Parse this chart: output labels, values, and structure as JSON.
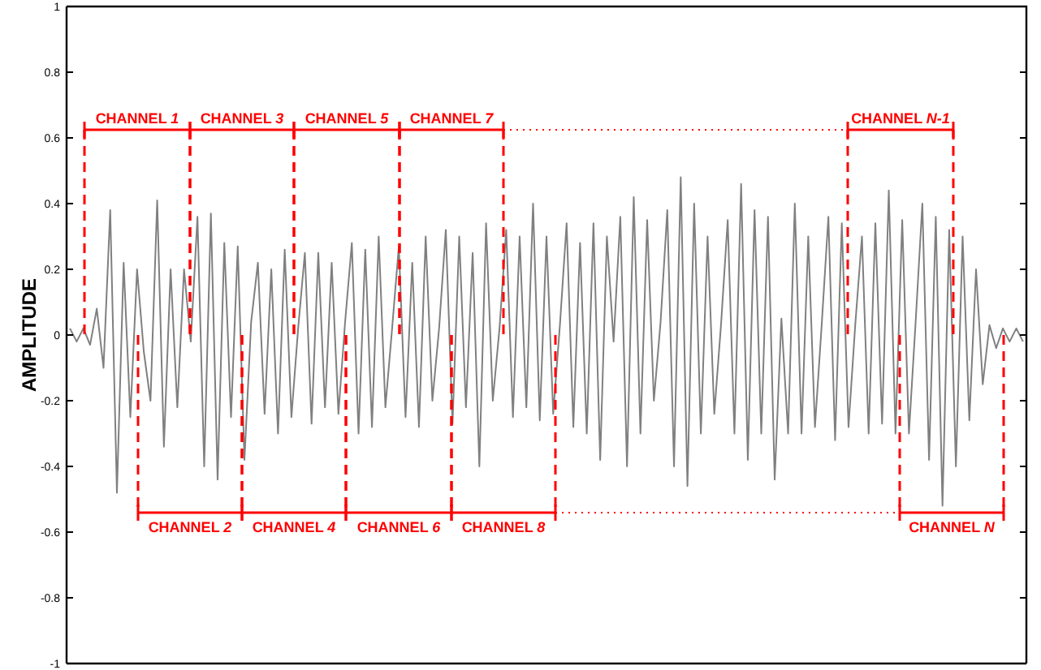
{
  "chart_data": {
    "type": "line",
    "ylabel": "AMPLITUDE",
    "ylim": [
      -1,
      1
    ],
    "tick_labels": "y",
    "categories": [
      null,
      null,
      null,
      null,
      null,
      null,
      null,
      null,
      null,
      null,
      null,
      null,
      null,
      null,
      null,
      null,
      null,
      null,
      null,
      null,
      null,
      null,
      null,
      null,
      null,
      null,
      null,
      null,
      null,
      null,
      null,
      null,
      null,
      null,
      null,
      null,
      null,
      null,
      null,
      null,
      null,
      null,
      null,
      null,
      null,
      null,
      null,
      null,
      null,
      null,
      null,
      null,
      null,
      null,
      null,
      null,
      null,
      null,
      null,
      null,
      null,
      null,
      null,
      null,
      null,
      null,
      null,
      null,
      null,
      null,
      null,
      null,
      null,
      null,
      null,
      null,
      null,
      null,
      null,
      null,
      null,
      null,
      null,
      null,
      null,
      null,
      null,
      null,
      null,
      null,
      null,
      null,
      null,
      null,
      null,
      null,
      null,
      null,
      null,
      null,
      null,
      null,
      null,
      null,
      null,
      null,
      null,
      null,
      null,
      null,
      null,
      null,
      null,
      null,
      null,
      null,
      null,
      null,
      null,
      null,
      null,
      null,
      null,
      null,
      null,
      null,
      null,
      null,
      null,
      null,
      null,
      null,
      null,
      null,
      null,
      null,
      null,
      null,
      null,
      null,
      null,
      null,
      null
    ],
    "annotations": [
      "CHANNEL 1",
      "CHANNEL 3",
      "CHANNEL 5",
      "CHANNEL 7",
      "CHANNEL N-1",
      "CHANNEL 2",
      "CHANNEL 4",
      "CHANNEL 6",
      "CHANNEL 8",
      "CHANNEL N"
    ],
    "yticks": [
      -1,
      -0.8,
      -0.6,
      -0.4,
      -0.2,
      0,
      0.2,
      0.4,
      0.6,
      0.8,
      1
    ],
    "grid": false,
    "marker": "none",
    "line_style": "solid",
    "series": [
      {
        "color": "#808080",
        "values": [
          0.02,
          -0.02,
          0.02,
          -0.03,
          0.08,
          -0.1,
          0.38,
          -0.48,
          0.22,
          -0.25,
          0.2,
          -0.05,
          -0.2,
          0.41,
          -0.34,
          0.2,
          -0.22,
          0.2,
          -0.02,
          0.36,
          -0.4,
          0.37,
          -0.44,
          0.28,
          -0.25,
          0.27,
          -0.38,
          0.04,
          0.22,
          -0.24,
          0.2,
          -0.3,
          0.26,
          -0.25,
          0.02,
          0.25,
          -0.27,
          0.25,
          -0.22,
          0.22,
          -0.24,
          0.04,
          0.28,
          -0.3,
          0.26,
          -0.28,
          0.3,
          -0.22,
          0.02,
          0.27,
          -0.25,
          0.22,
          -0.28,
          0.3,
          -0.2,
          0.02,
          0.32,
          -0.27,
          0.3,
          -0.22,
          0.25,
          -0.4,
          0.34,
          -0.2,
          0.02,
          0.32,
          -0.25,
          0.3,
          -0.22,
          0.4,
          -0.26,
          0.3,
          -0.24,
          0.03,
          0.34,
          -0.28,
          0.28,
          -0.3,
          0.34,
          -0.38,
          0.3,
          -0.02,
          0.36,
          -0.4,
          0.42,
          -0.3,
          0.35,
          -0.2,
          0.04,
          0.38,
          -0.4,
          0.48,
          -0.46,
          0.4,
          -0.3,
          0.3,
          -0.24,
          0.03,
          0.35,
          -0.3,
          0.46,
          -0.38,
          0.38,
          -0.3,
          0.36,
          -0.44,
          0.05,
          -0.3,
          0.4,
          -0.3,
          0.3,
          -0.28,
          0.03,
          0.36,
          -0.32,
          0.34,
          -0.28,
          0.03,
          0.3,
          -0.3,
          0.34,
          -0.27,
          0.44,
          -0.3,
          0.35,
          -0.3,
          0.04,
          0.4,
          -0.38,
          0.36,
          -0.52,
          0.32,
          -0.4,
          0.3,
          -0.26,
          0.2,
          -0.15,
          0.03,
          -0.04,
          0.02,
          -0.02,
          0.02,
          -0.02
        ]
      }
    ]
  }
}
